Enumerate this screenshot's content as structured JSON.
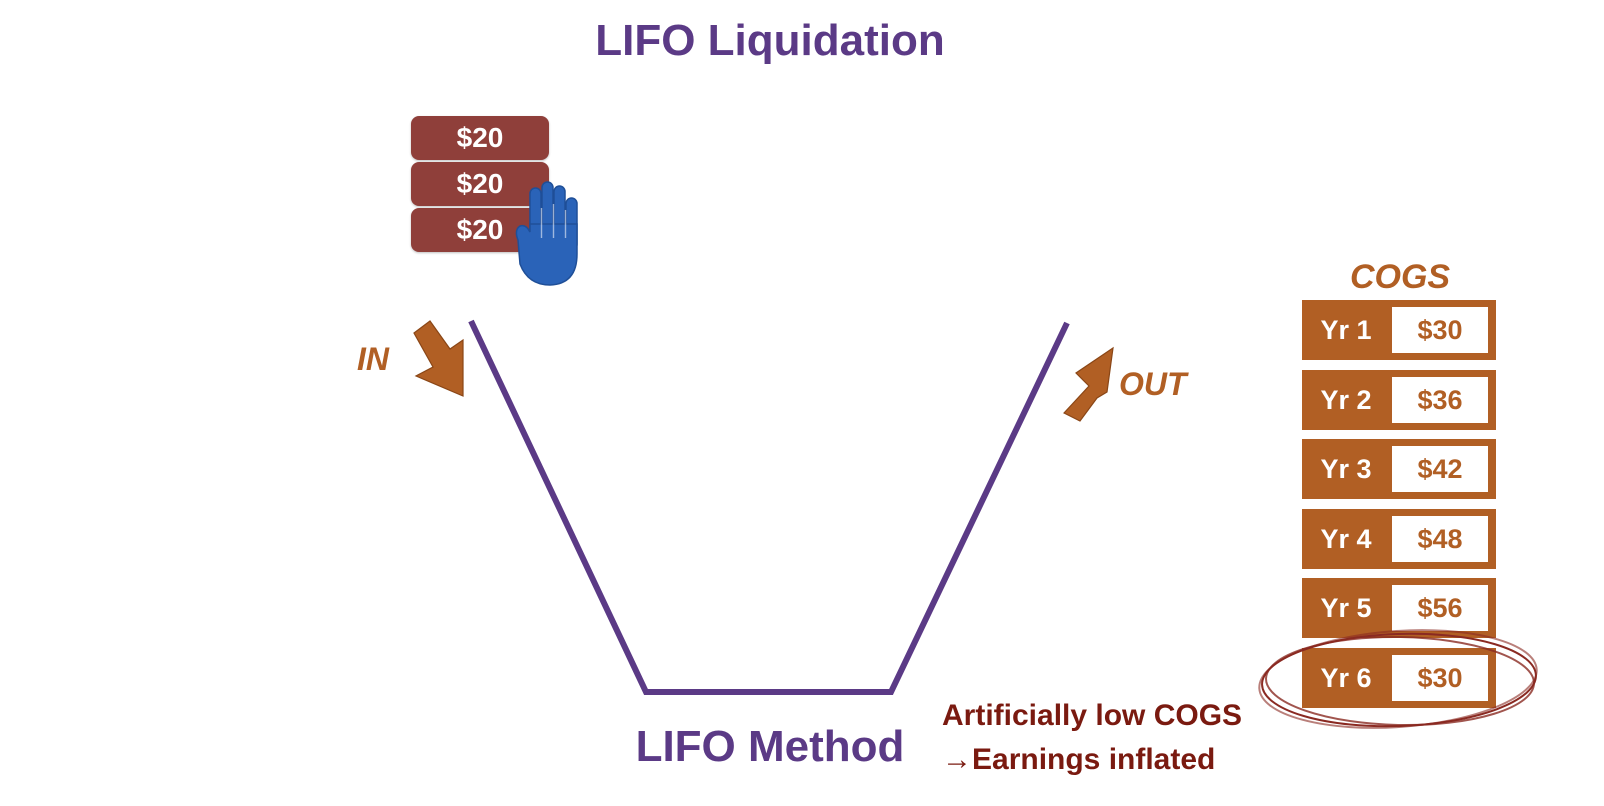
{
  "title": "LIFO Liquidation",
  "inventory_layers": [
    "$20",
    "$20",
    "$20"
  ],
  "flow": {
    "in_label": "IN",
    "out_label": "OUT"
  },
  "method_label": "LIFO Method",
  "note": {
    "line1": "Artificially low COGS",
    "line2": "→Earnings inflated"
  },
  "cogs": {
    "title": "COGS",
    "rows": [
      {
        "year": "Yr 1",
        "value": "$30"
      },
      {
        "year": "Yr 2",
        "value": "$36"
      },
      {
        "year": "Yr 3",
        "value": "$42"
      },
      {
        "year": "Yr 4",
        "value": "$48"
      },
      {
        "year": "Yr 5",
        "value": "$56"
      },
      {
        "year": "Yr 6",
        "value": "$30"
      }
    ],
    "highlighted_row": "Yr 6"
  },
  "colors": {
    "title": "#5b3a86",
    "bucket": "#5b3a86",
    "chip": "#8f3f3a",
    "hand": "#2a63b8",
    "arrow": "#b15f24",
    "cogs": "#b15f24",
    "note": "#7a1a10",
    "highlight_ring": "#8a2a22"
  },
  "icons": [
    "stop-hand-icon",
    "in-arrow-icon",
    "out-arrow-icon"
  ]
}
